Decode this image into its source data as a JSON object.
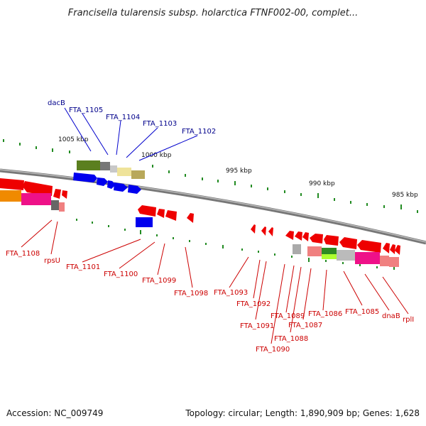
{
  "title": "Francisella tularensis subsp. holarctica FTNF002-00, complet...",
  "footer": {
    "accession": "Accession: NC_009749",
    "summary": "Topology: circular; Length: 1,890,909 bp; Genes: 1,628"
  },
  "colors": {
    "backbone": "#888888",
    "forward_genes": "#0000ee",
    "reverse_genes": "#ee0000",
    "ticks": "#228b22",
    "top_labels": "#00008b",
    "bottom_labels": "#cc0000"
  },
  "scale_labels": [
    "1005 kbp",
    "1000 kbp",
    "995 kbp",
    "990 kbp",
    "985 kbp"
  ],
  "top_labels": [
    "dacB",
    "FTA_1105",
    "FTA_1104",
    "FTA_1103",
    "FTA_1102"
  ],
  "bottom_labels": [
    "FTA_1108",
    "rpsU",
    "FTA_1101",
    "FTA_1100",
    "FTA_1099",
    "FTA_1098",
    "FTA_1093",
    "FTA_1092",
    "FTA_1091",
    "FTA_1090",
    "FTA_1089",
    "FTA_1088",
    "FTA_1087",
    "FTA_1086",
    "FTA_1085",
    "dnaB",
    "rplI"
  ]
}
